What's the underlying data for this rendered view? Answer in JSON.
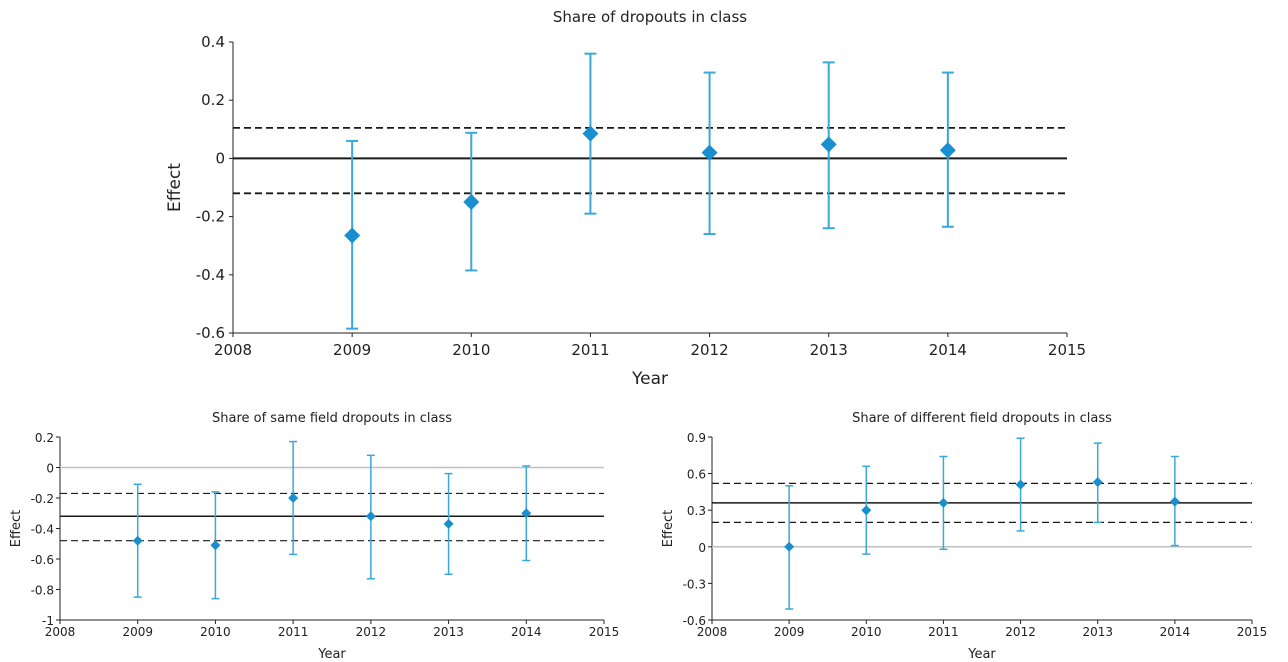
{
  "chart_data": [
    {
      "type": "scatter",
      "title": "Share of dropouts in class",
      "xlabel": "Year",
      "ylabel": "Effect",
      "xlim": [
        2008,
        2015
      ],
      "ylim": [
        -0.6,
        0.4
      ],
      "x_ticks": [
        "2008",
        "2009",
        "2010",
        "2011",
        "2012",
        "2013",
        "2014",
        "2015"
      ],
      "y_ticks": [
        "0.4",
        "0.2",
        "0",
        "-0.2",
        "-0.4",
        "-0.6"
      ],
      "x": [
        2009,
        2010,
        2011,
        2012,
        2013,
        2014
      ],
      "values": [
        -0.265,
        -0.15,
        0.085,
        0.02,
        0.048,
        0.028
      ],
      "ci_low": [
        -0.585,
        -0.385,
        -0.19,
        -0.26,
        -0.24,
        -0.235
      ],
      "ci_high": [
        0.06,
        0.088,
        0.36,
        0.295,
        0.33,
        0.295
      ],
      "hlines": {
        "zero": 0,
        "mean": 0,
        "band_low": -0.12,
        "band_high": 0.105
      },
      "colors": {
        "marker": "#1a8fd0",
        "errorbar": "#3aa8d8",
        "line": "#1a1a1a",
        "zero": "#1a1a1a"
      }
    },
    {
      "type": "scatter",
      "title": "Share of same field dropouts in class",
      "xlabel": "Year",
      "ylabel": "Effect",
      "xlim": [
        2008,
        2015
      ],
      "ylim": [
        -1,
        0.2
      ],
      "x_ticks": [
        "2008",
        "2009",
        "2010",
        "2011",
        "2012",
        "2013",
        "2014",
        "2015"
      ],
      "y_ticks": [
        "0.2",
        "0",
        "-0.2",
        "-0.4",
        "-0.6",
        "-0.8",
        "-1"
      ],
      "x": [
        2009,
        2010,
        2011,
        2012,
        2013,
        2014
      ],
      "values": [
        -0.48,
        -0.51,
        -0.2,
        -0.32,
        -0.37,
        -0.3
      ],
      "ci_low": [
        -0.85,
        -0.86,
        -0.57,
        -0.73,
        -0.7,
        -0.61
      ],
      "ci_high": [
        -0.11,
        -0.16,
        0.17,
        0.08,
        -0.04,
        0.01
      ],
      "hlines": {
        "zero": 0,
        "mean": -0.32,
        "band_low": -0.48,
        "band_high": -0.17
      },
      "colors": {
        "marker": "#1a8fd0",
        "errorbar": "#3aa8d8",
        "line": "#1a1a1a",
        "zero": "#c0c0c0"
      }
    },
    {
      "type": "scatter",
      "title": "Share of different field dropouts in class",
      "xlabel": "Year",
      "ylabel": "Effect",
      "xlim": [
        2008,
        2015
      ],
      "ylim": [
        -0.6,
        0.9
      ],
      "x_ticks": [
        "2008",
        "2009",
        "2010",
        "2011",
        "2012",
        "2013",
        "2014",
        "2015"
      ],
      "y_ticks": [
        "0.9",
        "0.6",
        "0.3",
        "0",
        "-0.3",
        "-0.6"
      ],
      "x": [
        2009,
        2010,
        2011,
        2012,
        2013,
        2014
      ],
      "values": [
        0,
        0.3,
        0.36,
        0.51,
        0.53,
        0.37
      ],
      "ci_low": [
        -0.51,
        -0.06,
        -0.02,
        0.13,
        0.2,
        0.01
      ],
      "ci_high": [
        0.5,
        0.66,
        0.74,
        0.89,
        0.85,
        0.74
      ],
      "hlines": {
        "zero": 0,
        "mean": 0.36,
        "band_low": 0.2,
        "band_high": 0.52
      },
      "colors": {
        "marker": "#1a8fd0",
        "errorbar": "#3aa8d8",
        "line": "#1a1a1a",
        "zero": "#c0c0c0"
      }
    }
  ]
}
